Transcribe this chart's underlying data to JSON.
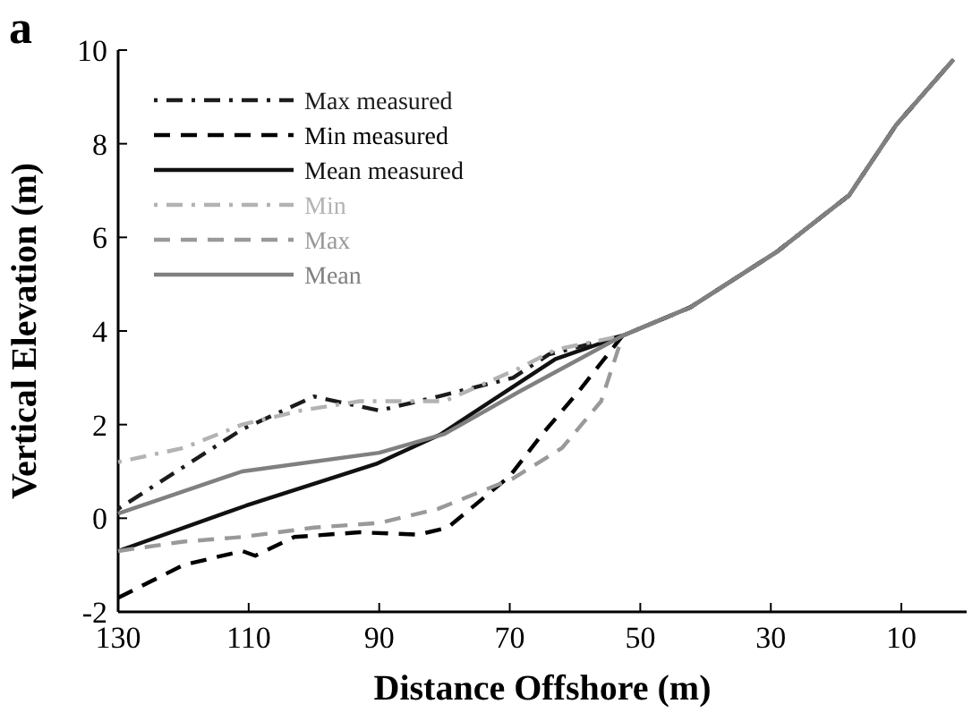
{
  "chart_data": {
    "type": "line",
    "xlabel": "Distance Offshore (m)",
    "ylabel": "Vertical Elevation (m)",
    "annotations": [
      "a"
    ],
    "xlim": [
      130,
      0
    ],
    "xticks": [
      130,
      110,
      90,
      70,
      50,
      30,
      10
    ],
    "ylim": [
      -2,
      10
    ],
    "yticks": [
      -2,
      0,
      2,
      4,
      6,
      8,
      10
    ],
    "grid": false,
    "legend": "top left",
    "marker": "none",
    "series": [
      {
        "name": "Max measured",
        "color": "#1c1c1c",
        "line_style": "dashdot",
        "x": [
          130,
          111,
          100,
          90,
          81,
          69.5,
          64,
          52.7,
          42.4,
          29,
          18,
          10.8,
          2
        ],
        "values": [
          0.2,
          1.9,
          2.6,
          2.3,
          2.6,
          3.0,
          3.5,
          3.9,
          4.5,
          5.7,
          6.9,
          8.4,
          9.8
        ]
      },
      {
        "name": "Min measured",
        "color": "#000000",
        "line_style": "dashed",
        "x": [
          130,
          120,
          111,
          109,
          103,
          93,
          84,
          79.5,
          70,
          65,
          59.5,
          52.7,
          42.4,
          29,
          18,
          10.8,
          2
        ],
        "values": [
          -1.7,
          -1.0,
          -0.7,
          -0.8,
          -0.4,
          -0.3,
          -0.35,
          -0.2,
          0.9,
          1.8,
          2.7,
          3.9,
          4.5,
          5.7,
          6.9,
          8.4,
          9.8
        ]
      },
      {
        "name": "Mean measured",
        "color": "#111111",
        "line_style": "solid",
        "x": [
          130,
          110.4,
          90.5,
          80.5,
          69.6,
          63,
          52.7,
          42.4,
          29,
          18,
          10.8,
          2
        ],
        "values": [
          -0.7,
          0.27,
          1.16,
          1.8,
          2.8,
          3.4,
          3.9,
          4.5,
          5.7,
          6.9,
          8.4,
          9.8
        ]
      },
      {
        "name": "Min",
        "color": "#b3b3b3",
        "line_style": "dashdot",
        "x": [
          130,
          120,
          111,
          102,
          93,
          80,
          68.6,
          63,
          52.7,
          42.4,
          29,
          18,
          10.8,
          2
        ],
        "values": [
          1.2,
          1.5,
          2.0,
          2.3,
          2.5,
          2.5,
          3.2,
          3.6,
          3.9,
          4.5,
          5.7,
          6.9,
          8.4,
          9.8
        ]
      },
      {
        "name": "Max",
        "color": "#999999",
        "line_style": "dashed",
        "x": [
          130,
          120,
          111,
          100,
          90,
          81,
          69.5,
          62,
          56,
          52.7,
          42.4,
          29,
          18,
          10.8,
          2
        ],
        "values": [
          -0.7,
          -0.5,
          -0.4,
          -0.2,
          -0.1,
          0.2,
          0.85,
          1.5,
          2.5,
          3.9,
          4.5,
          5.7,
          6.9,
          8.4,
          9.8
        ]
      },
      {
        "name": "Mean",
        "color": "#808080",
        "line_style": "solid",
        "x": [
          130,
          111,
          90,
          80,
          68.6,
          52.7,
          42.4,
          29,
          18,
          10.8,
          2
        ],
        "values": [
          0.1,
          1.0,
          1.4,
          1.8,
          2.7,
          3.9,
          4.5,
          5.7,
          6.9,
          8.4,
          9.8
        ]
      }
    ]
  }
}
